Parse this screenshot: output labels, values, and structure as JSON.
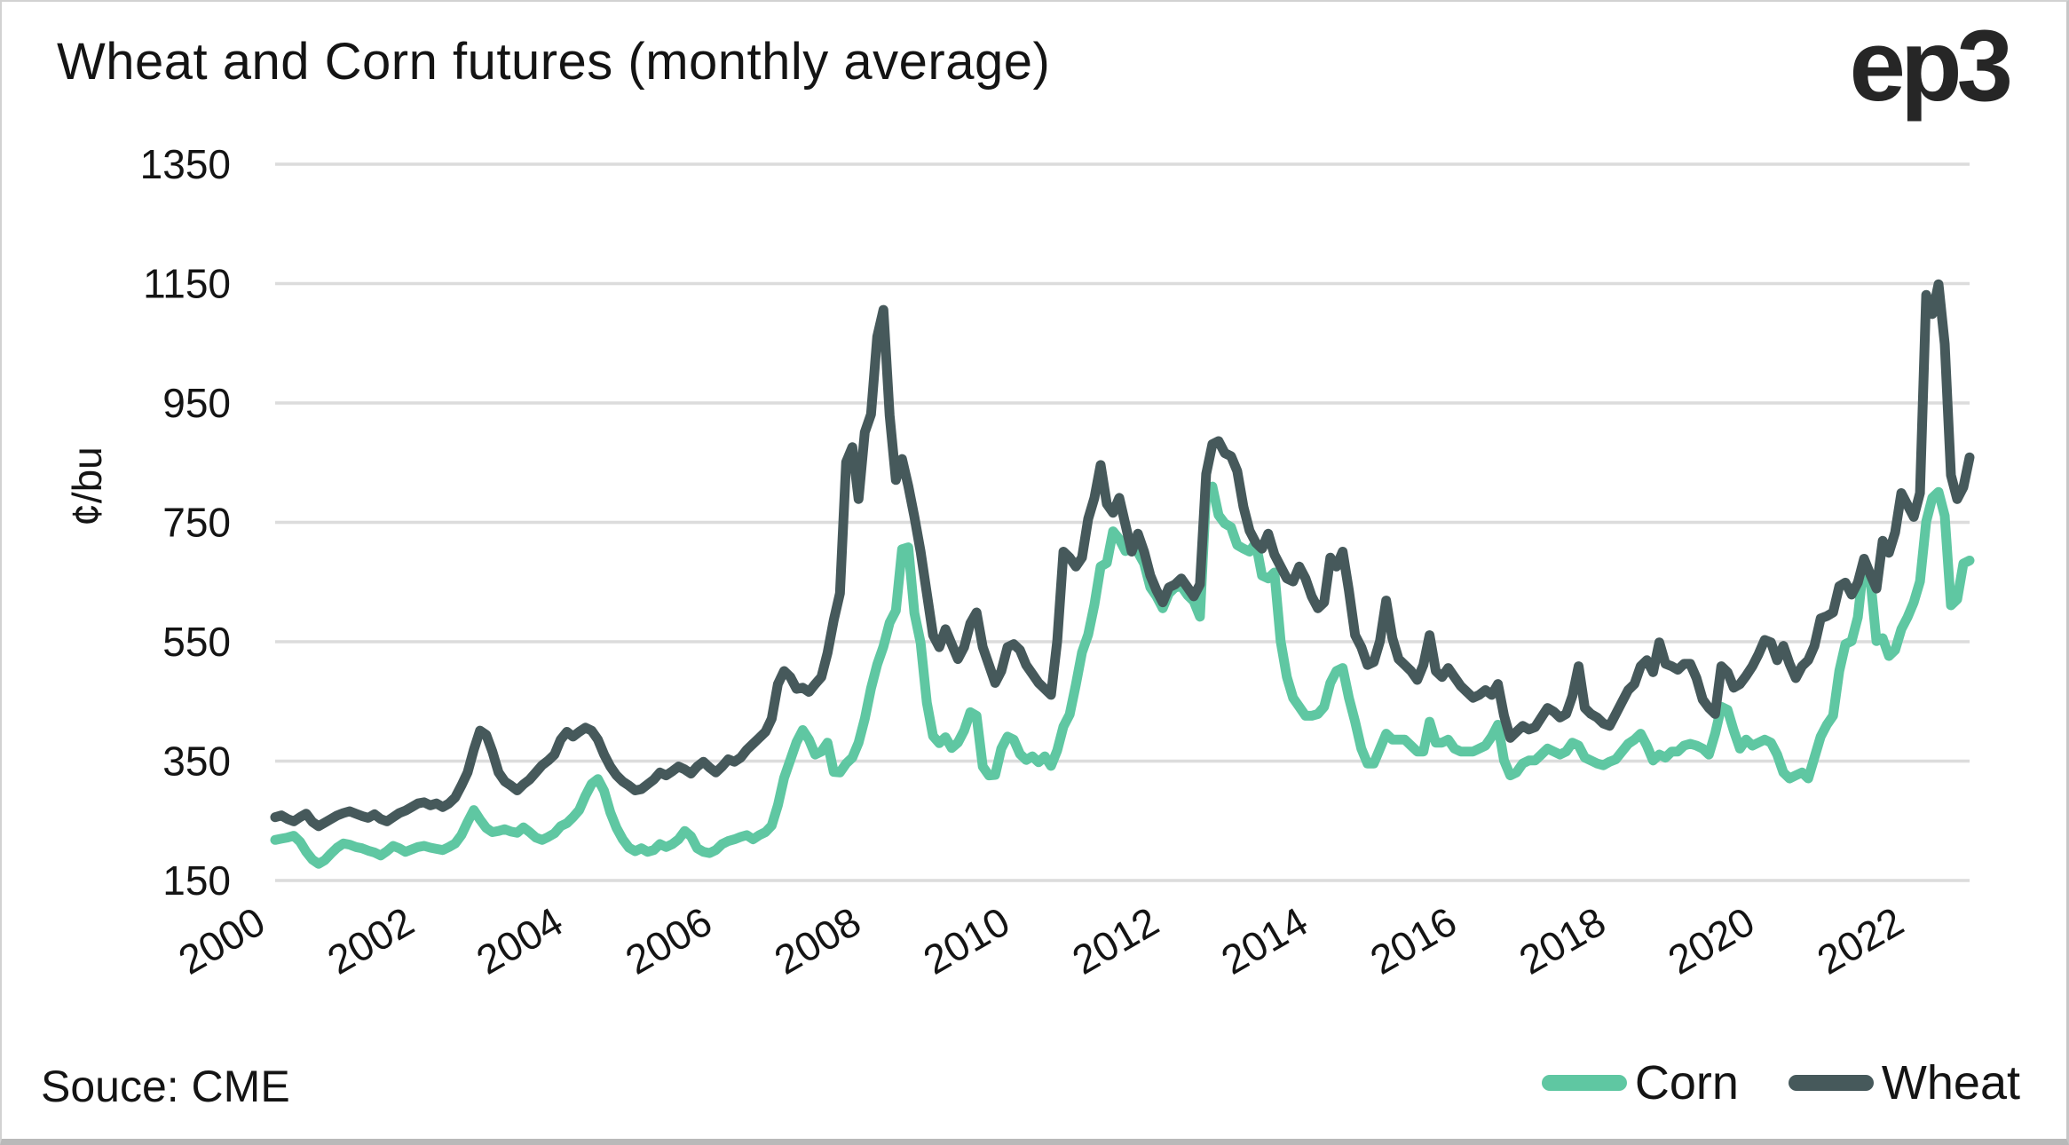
{
  "title": "Wheat and Corn futures (monthly average)",
  "logo": "ep3",
  "source": "Souce: CME",
  "legend": [
    {
      "label": "Corn",
      "color": "#5FC7A2"
    },
    {
      "label": "Wheat",
      "color": "#46595B"
    }
  ],
  "colors": {
    "corn_line": "#5FC7A2",
    "wheat_line": "#46595B",
    "gridline": "#DCDCDC",
    "text": "#141414",
    "background": "#FFFFFF"
  },
  "chart_data": {
    "type": "line",
    "title": "Wheat and Corn futures (monthly average)",
    "ylabel": "¢/bu",
    "xlabel": "",
    "grid": "horizontal",
    "legend_position": "bottom-right",
    "ylim": [
      150,
      1350
    ],
    "y_ticks": [
      150,
      350,
      550,
      750,
      950,
      1150,
      1350
    ],
    "x_start": "2000-01",
    "x_end": "2022-10",
    "x_frequency": "monthly",
    "x_tick_years": [
      2000,
      2002,
      2004,
      2006,
      2008,
      2010,
      2012,
      2014,
      2016,
      2018,
      2020,
      2022
    ],
    "series": [
      {
        "name": "Corn",
        "color": "#5FC7A2",
        "values": [
          218,
          220,
          222,
          225,
          215,
          198,
          185,
          178,
          184,
          195,
          205,
          212,
          210,
          206,
          204,
          200,
          197,
          192,
          199,
          208,
          204,
          198,
          202,
          206,
          208,
          205,
          203,
          201,
          206,
          212,
          226,
          248,
          268,
          252,
          238,
          231,
          233,
          236,
          232,
          230,
          239,
          231,
          222,
          218,
          223,
          229,
          241,
          246,
          256,
          268,
          292,
          312,
          320,
          300,
          264,
          238,
          219,
          205,
          199,
          204,
          198,
          201,
          211,
          206,
          211,
          219,
          233,
          224,
          204,
          198,
          196,
          201,
          211,
          216,
          219,
          223,
          226,
          219,
          226,
          231,
          242,
          276,
          322,
          352,
          382,
          402,
          386,
          361,
          366,
          381,
          332,
          331,
          346,
          356,
          381,
          421,
          472,
          512,
          542,
          582,
          602,
          705,
          708,
          598,
          548,
          448,
          392,
          380,
          390,
          372,
          381,
          401,
          432,
          426,
          341,
          326,
          327,
          371,
          391,
          386,
          362,
          352,
          358,
          348,
          358,
          342,
          368,
          408,
          428,
          478,
          532,
          562,
          612,
          676,
          682,
          735,
          722,
          702,
          715,
          700,
          681,
          641,
          626,
          606,
          631,
          641,
          643,
          628,
          618,
          592,
          800,
          810,
          762,
          748,
          742,
          712,
          706,
          701,
          716,
          661,
          656,
          666,
          551,
          491,
          456,
          441,
          426,
          426,
          429,
          441,
          481,
          501,
          506,
          456,
          416,
          371,
          346,
          346,
          371,
          396,
          386,
          386,
          386,
          376,
          366,
          366,
          416,
          381,
          381,
          386,
          371,
          366,
          366,
          366,
          371,
          376,
          391,
          411,
          351,
          326,
          331,
          346,
          351,
          351,
          361,
          371,
          366,
          361,
          366,
          381,
          376,
          356,
          351,
          346,
          343,
          349,
          353,
          366,
          379,
          386,
          396,
          376,
          351,
          361,
          356,
          366,
          366,
          376,
          379,
          376,
          371,
          361,
          396,
          441,
          436,
          401,
          371,
          386,
          376,
          381,
          386,
          381,
          361,
          331,
          321,
          326,
          331,
          321,
          356,
          391,
          411,
          426,
          501,
          546,
          551,
          591,
          686,
          656,
          551,
          556,
          526,
          536,
          571,
          591,
          616,
          651,
          751,
          791,
          801,
          761,
          611,
          621,
          681,
          686
        ]
      },
      {
        "name": "Wheat",
        "color": "#46595B",
        "values": [
          256,
          259,
          253,
          249,
          256,
          262,
          248,
          241,
          247,
          253,
          259,
          263,
          266,
          262,
          258,
          255,
          261,
          253,
          249,
          256,
          263,
          267,
          273,
          279,
          281,
          276,
          279,
          273,
          279,
          289,
          309,
          331,
          369,
          401,
          394,
          366,
          331,
          316,
          309,
          301,
          311,
          319,
          331,
          343,
          351,
          361,
          386,
          399,
          391,
          399,
          406,
          401,
          386,
          361,
          341,
          326,
          316,
          309,
          301,
          303,
          311,
          319,
          331,
          326,
          333,
          341,
          336,
          329,
          341,
          349,
          339,
          331,
          341,
          353,
          349,
          356,
          369,
          379,
          389,
          399,
          421,
          479,
          501,
          491,
          471,
          473,
          466,
          479,
          491,
          531,
          586,
          631,
          851,
          876,
          789,
          901,
          931,
          1061,
          1106,
          929,
          821,
          856,
          811,
          759,
          701,
          631,
          561,
          541,
          571,
          546,
          521,
          541,
          581,
          599,
          541,
          511,
          481,
          501,
          541,
          546,
          536,
          511,
          496,
          481,
          471,
          461,
          551,
          701,
          691,
          676,
          691,
          756,
          791,
          846,
          781,
          766,
          791,
          746,
          701,
          731,
          701,
          661,
          636,
          616,
          641,
          646,
          656,
          641,
          626,
          646,
          831,
          881,
          886,
          866,
          861,
          836,
          776,
          736,
          716,
          706,
          731,
          696,
          676,
          656,
          651,
          676,
          656,
          626,
          606,
          616,
          691,
          676,
          701,
          636,
          561,
          541,
          511,
          516,
          551,
          619,
          556,
          521,
          511,
          501,
          486,
          511,
          561,
          501,
          491,
          506,
          491,
          476,
          466,
          456,
          461,
          469,
          461,
          479,
          426,
          389,
          399,
          409,
          403,
          407,
          423,
          439,
          433,
          423,
          429,
          459,
          509,
          439,
          429,
          423,
          413,
          409,
          429,
          449,
          469,
          479,
          509,
          519,
          499,
          549,
          513,
          509,
          503,
          513,
          513,
          489,
          453,
          439,
          429,
          509,
          499,
          473,
          479,
          493,
          509,
          529,
          553,
          549,
          519,
          543,
          513,
          489,
          509,
          519,
          543,
          589,
          593,
          599,
          643,
          649,
          629,
          649,
          689,
          663,
          639,
          719,
          699,
          733,
          799,
          779,
          759,
          799,
          1131,
          1099,
          1149,
          1049,
          829,
          789,
          809,
          859
        ]
      }
    ]
  }
}
